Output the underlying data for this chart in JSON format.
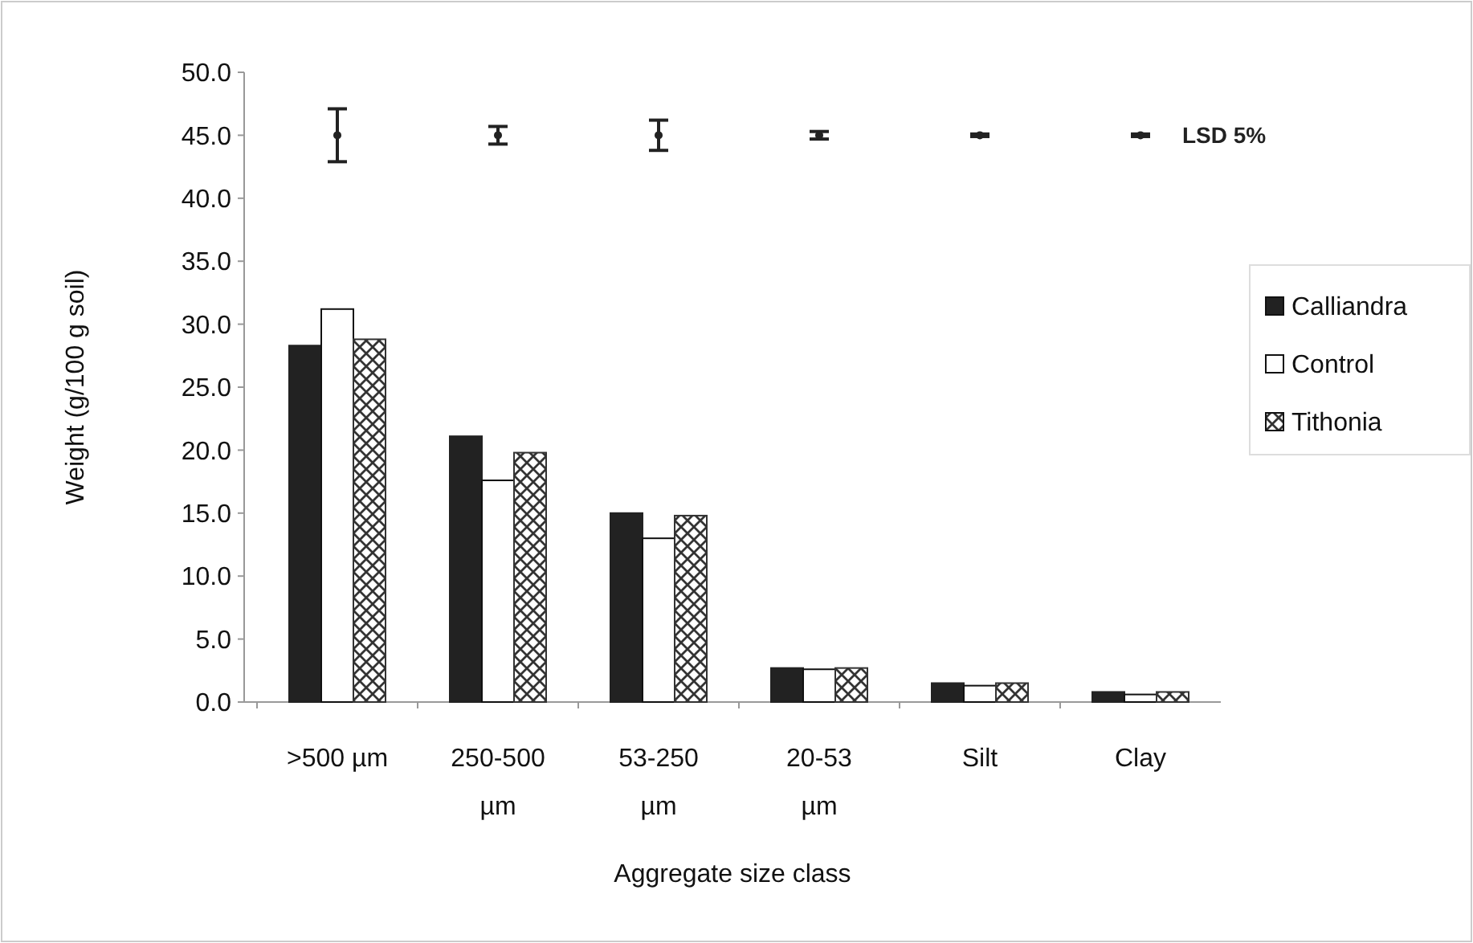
{
  "chart_data": {
    "type": "bar",
    "xlabel": "Aggregate size class",
    "ylabel": "Weight (g/100 g soil)",
    "categories": [
      ">500 µm",
      "250-500 µm",
      "53-250 µm",
      "20-53 µm",
      "Silt",
      "Clay"
    ],
    "ylim": [
      0,
      50
    ],
    "yticks": [
      {
        "value": 0,
        "label": "0.0"
      },
      {
        "value": 5,
        "label": "5.0"
      },
      {
        "value": 10,
        "label": "10.0"
      },
      {
        "value": 15,
        "label": "15.0"
      },
      {
        "value": 20,
        "label": "20.0"
      },
      {
        "value": 25,
        "label": "25.0"
      },
      {
        "value": 30,
        "label": "30.0"
      },
      {
        "value": 35,
        "label": "35.0"
      },
      {
        "value": 40,
        "label": "40.0"
      },
      {
        "value": 45,
        "label": "45.0"
      },
      {
        "value": 50,
        "label": "50.0"
      }
    ],
    "grid": false,
    "legend": "right",
    "series": [
      {
        "name": "Calliandra",
        "color": "#222222",
        "values": [
          28.3,
          21.1,
          15.0,
          2.7,
          1.5,
          0.8
        ]
      },
      {
        "name": "Control",
        "color": "#ffffff",
        "values": [
          31.2,
          17.6,
          13.0,
          2.6,
          1.3,
          0.6
        ]
      },
      {
        "name": "Tithonia",
        "color": "#333333",
        "values": [
          28.8,
          19.8,
          14.8,
          2.7,
          1.5,
          0.8
        ]
      },
      {
        "name": "LSD 5%",
        "type": "scatter",
        "color": "#222222",
        "values": [
          45,
          45,
          45,
          45,
          45,
          45
        ],
        "errors": [
          2.1,
          0.7,
          1.2,
          0.3,
          0.1,
          0.1
        ]
      }
    ]
  }
}
